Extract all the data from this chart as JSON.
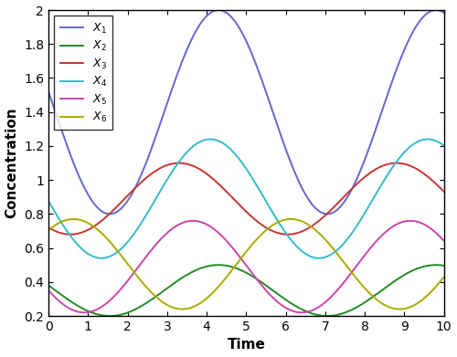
{
  "xlabel": "Time",
  "ylabel": "Concentration",
  "xlim": [
    0,
    10
  ],
  "ylim": [
    0.2,
    2.0
  ],
  "yticks": [
    0.2,
    0.4,
    0.6,
    0.8,
    1.0,
    1.2,
    1.4,
    1.6,
    1.8,
    2.0
  ],
  "xticks": [
    0,
    1,
    2,
    3,
    4,
    5,
    6,
    7,
    8,
    9,
    10
  ],
  "series": [
    {
      "label": "$X_1$",
      "color": "#6666CC",
      "mean": 1.4,
      "amp": 0.6,
      "period": 5.5,
      "phase": -1.55
    },
    {
      "label": "$X_2$",
      "color": "#228B22",
      "mean": 0.35,
      "amp": 0.15,
      "period": 5.5,
      "phase": -1.55
    },
    {
      "label": "$X_3$",
      "color": "#CC3333",
      "mean": 0.89,
      "amp": 0.21,
      "period": 5.5,
      "phase": -0.4
    },
    {
      "label": "$X_4$",
      "color": "#33BBCC",
      "mean": 0.89,
      "amp": 0.35,
      "period": 5.5,
      "phase": -1.55
    },
    {
      "label": "$X_5$",
      "color": "#CC44AA",
      "mean": 0.49,
      "amp": 0.27,
      "period": 5.5,
      "phase": -0.7
    },
    {
      "label": "$X_6$",
      "color": "#AAAA00",
      "mean": 0.505,
      "amp": 0.265,
      "period": 5.5,
      "phase": 1.05
    }
  ],
  "figsize": [
    5.0,
    3.91
  ],
  "dpi": 100,
  "background_color": "#ffffff",
  "legend_fontsize": 9,
  "axis_fontsize": 11,
  "tick_fontsize": 10
}
